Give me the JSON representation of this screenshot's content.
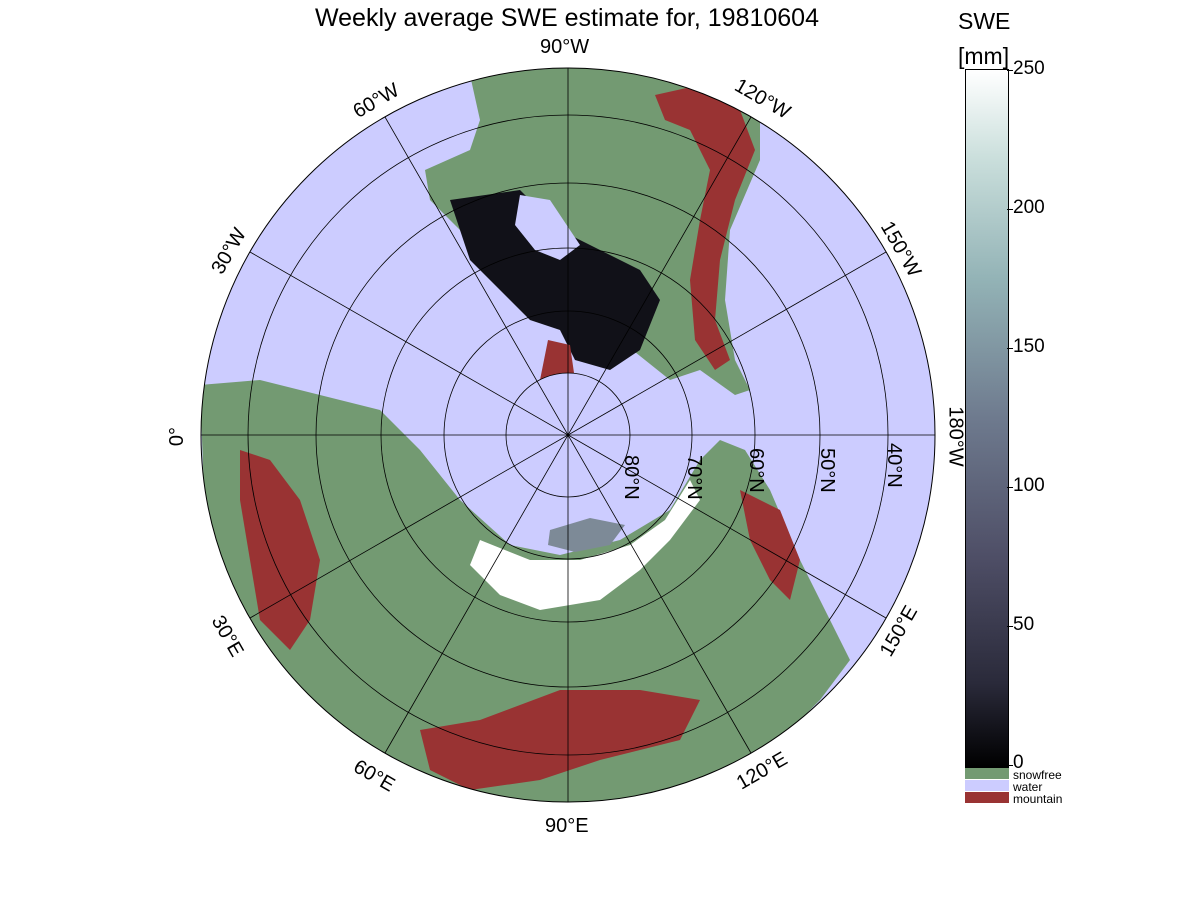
{
  "title": "Weekly average SWE estimate for, 19810604",
  "colorbar": {
    "title_line1": "SWE",
    "title_line2": "[mm]",
    "ticks": [
      "0",
      "50",
      "100",
      "150",
      "200",
      "250"
    ],
    "range": [
      0,
      250
    ],
    "color_low": "#000000",
    "color_high": "#ffffff"
  },
  "legend": [
    {
      "label": "snowfree",
      "color": "#739a72"
    },
    {
      "label": "water",
      "color": "#ccccff"
    },
    {
      "label": "mountain",
      "color": "#993333"
    }
  ],
  "map": {
    "projection": "north polar stereographic",
    "longitude_labels": {
      "lon_90w": "90°W",
      "lon_120w": "120°W",
      "lon_150w": "150°W",
      "lon_180w": "180°W",
      "lon_60w": "60°W",
      "lon_30w": "30°W",
      "lon_0": "0°",
      "lon_30e": "30°E",
      "lon_60e": "60°E",
      "lon_90e": "90°E",
      "lon_120e": "120°E",
      "lon_150e": "150°E"
    },
    "latitude_labels": {
      "lat_80n": "80°N",
      "lat_70n": "70°N",
      "lat_60n": "60°N",
      "lat_50n": "50°N",
      "lat_40n": "40°N"
    },
    "colors": {
      "water": "#ccccff",
      "snowfree": "#739a72",
      "mountain": "#993333",
      "snow_low": "#111118",
      "snow_mid": "#7d8a97",
      "snow_high": "#ffffff"
    }
  }
}
